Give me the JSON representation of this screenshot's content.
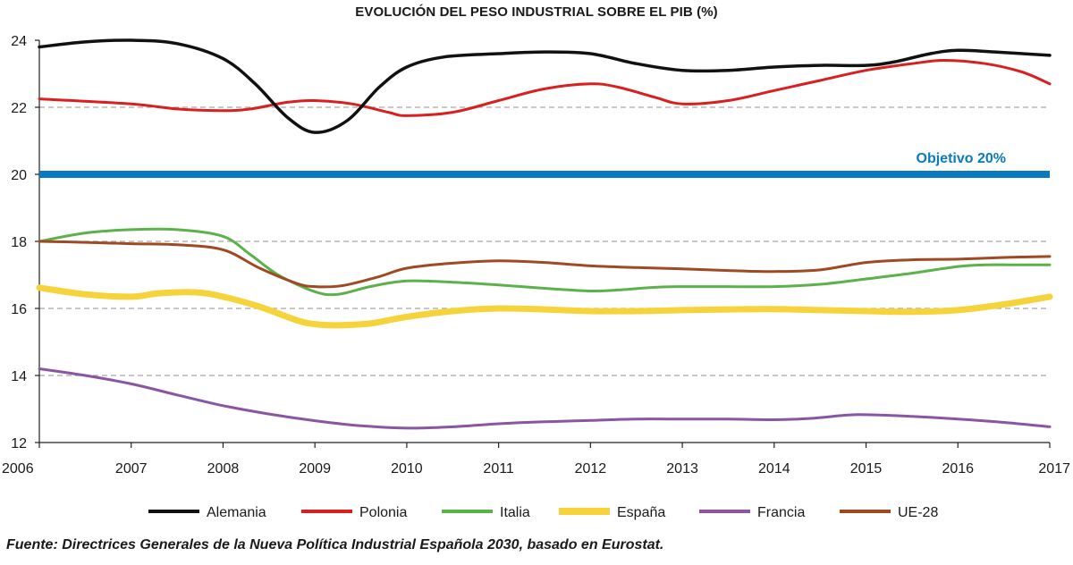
{
  "chart_data": {
    "type": "line",
    "title": "EVOLUCIÓN DEL PESO INDUSTRIAL SOBRE EL PIB (%)",
    "xlabel": "",
    "ylabel": "",
    "x": [
      2006,
      2007,
      2008,
      2009,
      2010,
      2011,
      2012,
      2013,
      2014,
      2015,
      2016,
      2017
    ],
    "x_tick_labels": [
      "2006",
      "2007",
      "2008",
      "2009",
      "2010",
      "2011",
      "2012",
      "2013",
      "2014",
      "2015",
      "2016",
      "2017"
    ],
    "ylim": [
      12,
      24
    ],
    "y_ticks": [
      12,
      14,
      16,
      18,
      20,
      22,
      24
    ],
    "y_tick_labels": [
      "12",
      "14",
      "16",
      "18",
      "20",
      "22",
      "24"
    ],
    "gridlines": [
      14,
      16,
      18,
      22
    ],
    "grid_style": "dashed",
    "legend_position": "bottom",
    "reference_line": {
      "value": 20,
      "label": "Objetivo 20%",
      "color": "#0a7abf"
    },
    "series": [
      {
        "name": "Alemania",
        "color": "#111111",
        "width": 3.5,
        "x": [
          2006,
          2006.5,
          2007,
          2007.5,
          2008,
          2008.35,
          2008.7,
          2009,
          2009.35,
          2009.7,
          2010,
          2010.4,
          2011,
          2011.5,
          2012,
          2012.5,
          2013,
          2013.5,
          2014,
          2014.5,
          2015,
          2015.3,
          2015.7,
          2016,
          2016.4,
          2017
        ],
        "values": [
          23.8,
          23.95,
          24.0,
          23.9,
          23.45,
          22.7,
          21.7,
          21.25,
          21.6,
          22.6,
          23.2,
          23.5,
          23.6,
          23.65,
          23.6,
          23.3,
          23.1,
          23.1,
          23.2,
          23.25,
          23.25,
          23.35,
          23.6,
          23.7,
          23.65,
          23.55
        ]
      },
      {
        "name": "Polonia",
        "color": "#d91f1f",
        "width": 3,
        "x": [
          2006,
          2007,
          2007.5,
          2008,
          2008.3,
          2008.7,
          2009,
          2009.4,
          2009.8,
          2010,
          2010.5,
          2011,
          2011.5,
          2012,
          2012.3,
          2012.7,
          2013,
          2013.5,
          2014,
          2014.5,
          2015,
          2015.5,
          2015.85,
          2016.3,
          2016.7,
          2017
        ],
        "values": [
          22.25,
          22.1,
          21.95,
          21.9,
          21.95,
          22.15,
          22.2,
          22.1,
          21.85,
          21.75,
          21.85,
          22.2,
          22.55,
          22.7,
          22.6,
          22.3,
          22.1,
          22.2,
          22.5,
          22.8,
          23.1,
          23.3,
          23.4,
          23.3,
          23.05,
          22.7
        ]
      },
      {
        "name": "Italia",
        "color": "#5bb24a",
        "width": 3,
        "x": [
          2006,
          2006.5,
          2007,
          2007.5,
          2008,
          2008.3,
          2008.6,
          2009,
          2009.25,
          2009.6,
          2010,
          2010.5,
          2011,
          2011.5,
          2012,
          2012.3,
          2012.7,
          2013,
          2013.5,
          2014,
          2014.5,
          2015,
          2015.5,
          2016,
          2016.3,
          2016.7,
          2017
        ],
        "values": [
          18.0,
          18.25,
          18.35,
          18.35,
          18.15,
          17.6,
          17.0,
          16.5,
          16.42,
          16.65,
          16.82,
          16.78,
          16.7,
          16.6,
          16.52,
          16.55,
          16.63,
          16.65,
          16.65,
          16.65,
          16.72,
          16.88,
          17.05,
          17.25,
          17.3,
          17.3,
          17.3
        ]
      },
      {
        "name": "España",
        "color": "#f7d33b",
        "width": 7,
        "x": [
          2006,
          2006.5,
          2007,
          2007.3,
          2007.7,
          2008,
          2008.4,
          2008.8,
          2009,
          2009.25,
          2009.6,
          2010,
          2010.5,
          2011,
          2011.5,
          2012,
          2012.5,
          2013,
          2013.5,
          2014,
          2014.5,
          2015,
          2015.5,
          2016,
          2016.5,
          2017
        ],
        "values": [
          16.62,
          16.42,
          16.35,
          16.45,
          16.48,
          16.35,
          16.05,
          15.65,
          15.53,
          15.5,
          15.55,
          15.75,
          15.92,
          16.0,
          15.97,
          15.92,
          15.92,
          15.95,
          15.97,
          15.98,
          15.95,
          15.92,
          15.9,
          15.95,
          16.12,
          16.35
        ]
      },
      {
        "name": "Francia",
        "color": "#8a55a3",
        "width": 3,
        "x": [
          2006,
          2006.5,
          2007,
          2007.5,
          2008,
          2008.5,
          2009,
          2009.5,
          2010,
          2010.5,
          2011,
          2011.5,
          2012,
          2012.5,
          2013,
          2013.5,
          2014,
          2014.4,
          2014.8,
          2015,
          2015.5,
          2016,
          2016.5,
          2017
        ],
        "values": [
          14.2,
          14.0,
          13.75,
          13.42,
          13.1,
          12.85,
          12.65,
          12.5,
          12.43,
          12.47,
          12.56,
          12.62,
          12.66,
          12.7,
          12.7,
          12.7,
          12.68,
          12.72,
          12.82,
          12.83,
          12.78,
          12.7,
          12.6,
          12.47
        ]
      },
      {
        "name": "UE-28",
        "color": "#9f4a22",
        "width": 3,
        "x": [
          2006,
          2006.5,
          2007,
          2007.5,
          2008,
          2008.4,
          2008.8,
          2009,
          2009.3,
          2009.7,
          2010,
          2010.5,
          2011,
          2011.5,
          2012,
          2012.5,
          2013,
          2013.5,
          2014,
          2014.5,
          2015,
          2015.5,
          2016,
          2016.5,
          2017
        ],
        "values": [
          18.0,
          17.97,
          17.93,
          17.9,
          17.75,
          17.2,
          16.75,
          16.65,
          16.68,
          16.95,
          17.2,
          17.35,
          17.42,
          17.37,
          17.27,
          17.22,
          17.18,
          17.13,
          17.1,
          17.15,
          17.37,
          17.45,
          17.47,
          17.52,
          17.55
        ]
      }
    ]
  },
  "source_note": "Fuente: Directrices Generales de la Nueva Política Industrial Española 2030, basado en Eurostat."
}
